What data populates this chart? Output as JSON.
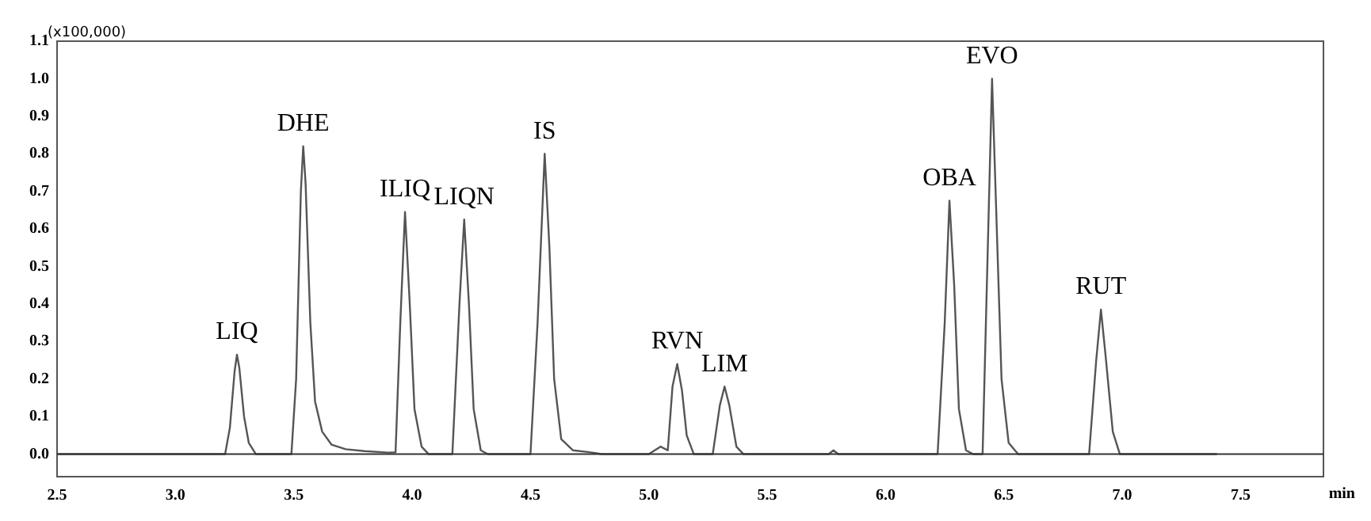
{
  "chart_data": {
    "type": "line",
    "xlabel": "min",
    "ylabel": "(x100,000)",
    "series": [
      {
        "color": "#555555",
        "x": [
          2.5,
          3.21,
          3.23,
          3.25,
          3.26,
          3.27,
          3.29,
          3.31,
          3.34,
          3.49,
          3.51,
          3.53,
          3.54,
          3.55,
          3.57,
          3.59,
          3.62,
          3.66,
          3.72,
          3.8,
          3.9,
          3.93,
          3.95,
          3.97,
          3.99,
          4.01,
          4.04,
          4.07,
          4.17,
          4.2,
          4.22,
          4.24,
          4.26,
          4.29,
          4.32,
          4.5,
          4.53,
          4.56,
          4.58,
          4.6,
          4.63,
          4.68,
          4.75,
          4.8,
          5.0,
          5.05,
          5.08,
          5.1,
          5.12,
          5.14,
          5.16,
          5.19,
          5.27,
          5.3,
          5.32,
          5.34,
          5.37,
          5.4,
          5.76,
          5.78,
          5.8,
          6.22,
          6.25,
          6.27,
          6.29,
          6.31,
          6.34,
          6.37,
          6.41,
          6.43,
          6.45,
          6.47,
          6.49,
          6.52,
          6.56,
          6.86,
          6.89,
          6.91,
          6.93,
          6.96,
          6.99,
          7.4
        ],
        "values": [
          0,
          0,
          0.07,
          0.22,
          0.265,
          0.23,
          0.1,
          0.03,
          0,
          0,
          0.2,
          0.7,
          0.82,
          0.72,
          0.35,
          0.14,
          0.06,
          0.025,
          0.013,
          0.008,
          0.004,
          0.005,
          0.35,
          0.645,
          0.4,
          0.12,
          0.02,
          0,
          0,
          0.4,
          0.625,
          0.4,
          0.12,
          0.01,
          0,
          0,
          0.35,
          0.8,
          0.55,
          0.2,
          0.04,
          0.01,
          0.005,
          0,
          0,
          0.02,
          0.01,
          0.18,
          0.24,
          0.17,
          0.05,
          0,
          0,
          0.13,
          0.18,
          0.13,
          0.02,
          0,
          0,
          0.01,
          0,
          0,
          0.35,
          0.675,
          0.45,
          0.12,
          0.01,
          0,
          0,
          0.5,
          1.0,
          0.6,
          0.2,
          0.03,
          0,
          0,
          0.25,
          0.385,
          0.26,
          0.06,
          0,
          0
        ]
      }
    ],
    "xlim": [
      2.5,
      7.85
    ],
    "xticks": [
      2.5,
      {
        "value": 3,
        "label": "3.0"
      },
      3.5,
      {
        "value": 4,
        "label": "4.0"
      },
      4.5,
      {
        "value": 5,
        "label": "5.0"
      },
      5.5,
      {
        "value": 6,
        "label": "6.0"
      },
      6.5,
      {
        "value": 7,
        "label": "7.0"
      },
      7.5
    ],
    "ylim": [
      -0.06,
      1.1
    ],
    "yticks": [
      {
        "value": 0,
        "label": "0.0"
      },
      0.1,
      0.2,
      0.3,
      0.4,
      0.5,
      0.6,
      0.7,
      0.8,
      0.9,
      {
        "value": 1,
        "label": "1.0"
      },
      1.1
    ],
    "ref_lines": [
      {
        "axis": "y",
        "value": 0,
        "color": "#333333"
      }
    ],
    "grid": false,
    "legend": false,
    "marker": "none",
    "line_style": "solid",
    "annotations": [
      {
        "text": "LIQ",
        "x": 3.26,
        "y": 0.265
      },
      {
        "text": "DHE",
        "x": 3.54,
        "y": 0.82
      },
      {
        "text": "ILIQ",
        "x": 3.97,
        "y": 0.645
      },
      {
        "text": "LIQN",
        "x": 4.22,
        "y": 0.625
      },
      {
        "text": "IS",
        "x": 4.56,
        "y": 0.8
      },
      {
        "text": "RVN",
        "x": 5.12,
        "y": 0.24
      },
      {
        "text": "LIM",
        "x": 5.32,
        "y": 0.18
      },
      {
        "text": "OBA",
        "x": 6.27,
        "y": 0.675
      },
      {
        "text": "EVO",
        "x": 6.45,
        "y": 1.0
      },
      {
        "text": "RUT",
        "x": 6.91,
        "y": 0.385
      }
    ]
  }
}
